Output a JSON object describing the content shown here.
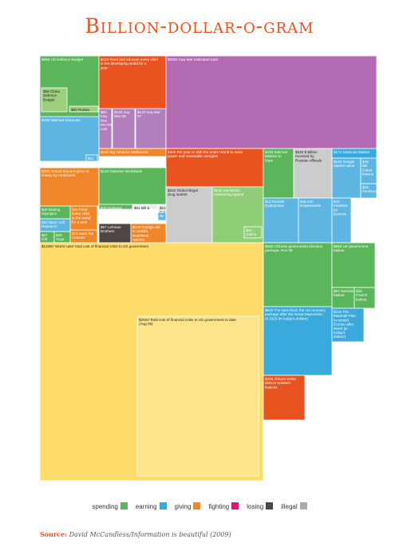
{
  "title": "Billion-dollar-o-gram",
  "legend": [
    {
      "label": "spending",
      "color": "#5bb55a"
    },
    {
      "label": "earning",
      "color": "#3aa9dc"
    },
    {
      "label": "giving",
      "color": "#f0862a"
    },
    {
      "label": "fighting",
      "color": "#e0167a"
    },
    {
      "label": "losing",
      "color": "#4f4643"
    },
    {
      "label": "illegal",
      "color": "#aaaaaa"
    }
  ],
  "source": {
    "label": "Source:",
    "text": "David McCandless/Information is beautiful (2009)"
  },
  "chart_data": {
    "type": "treemap",
    "unit": "$ billion",
    "cells": [
      {
        "value": 685,
        "label": "US Defence Budget",
        "color": "#5bb55a"
      },
      {
        "value": 69,
        "label": "China Defence Budget",
        "color": "#9dd07c"
      },
      {
        "value": 50,
        "label": "Russia",
        "color": "#9dd07c"
      },
      {
        "value": 410,
        "label": "Feed and educate every child in the developing world for a year",
        "color": "#e8531f"
      },
      {
        "value": 60,
        "label": "Iraq War pre-iterated cost",
        "color": "#b27fbd"
      },
      {
        "value": 135,
        "label": "Iraq War 08",
        "color": "#b27fbd"
      },
      {
        "value": 133,
        "label": "Iraq War 07",
        "color": "#b27fbd"
      },
      {
        "value": 3000,
        "label": "Iraq War estimated total",
        "color": "#b26bb2"
      },
      {
        "value": 405,
        "label": "Walmart revenues",
        "color": "#5db6e2"
      },
      {
        "value": 11,
        "label": "Walmart profits",
        "color": "#5db6e2"
      },
      {
        "value": 246,
        "label": "Big Tobacco Settlement",
        "color": "#f0862a"
      },
      {
        "value": 300,
        "label": "Annual amount given to charity by Americans",
        "color": "#f0862a"
      },
      {
        "value": 300,
        "label": "Per year to shift the entire World to Solar power and renewable energies",
        "color": "#e8531f"
      },
      {
        "value": 120,
        "label": "Diabetes Worldwide",
        "color": "#5bb55a"
      },
      {
        "value": 78,
        "label": "Diabetes Worldwide",
        "color": "#5bb55a"
      },
      {
        "value": 51,
        "label": "Bill & Melinda Gates Foundation",
        "color": "#ededed"
      },
      {
        "value": 15,
        "label": "Gates Foundation annual",
        "color": "#ededed"
      },
      {
        "value": 322,
        "label": "Global illegal drug market",
        "color": "#cccccc"
      },
      {
        "value": 190,
        "label": "Worldwide Advertising Spend",
        "color": "#8fce77"
      },
      {
        "value": 30,
        "label": "Online Advertising",
        "color": "#8fce77"
      },
      {
        "value": 171,
        "label": "Nintendo Market value",
        "color": "#3aa9dc"
      },
      {
        "value": 140,
        "label": "Google Market value",
        "color": "#5db6e2"
      },
      {
        "value": 49,
        "label": "Bill Gates fortune",
        "color": "#5db6e2"
      },
      {
        "value": 15,
        "label": "Facebook",
        "color": "#5db6e2"
      },
      {
        "value": 338,
        "label": "Walmart Mission to Mars",
        "color": "#5bb55a"
      },
      {
        "value": 340,
        "label": "$ Billion received by Russian officials",
        "color": "#cccccc"
      },
      {
        "value": 4,
        "label": "OPEC earnings",
        "color": "#3aa9dc"
      },
      {
        "value": 5,
        "label": "OPEC climate change fund",
        "color": "#5db6e2"
      },
      {
        "value": 12,
        "label": "Erectile Dysfunction",
        "color": "#5db6e2"
      },
      {
        "value": 45,
        "label": "Anti Depressants",
        "color": "#5db6e2"
      },
      {
        "value": 42,
        "label": "Freebies for Doctors",
        "color": "#5db6e2"
      },
      {
        "value": 46,
        "label": "Boeing Olympics",
        "color": "#5bb55a"
      },
      {
        "value": 26,
        "label": "Feed every child in the world for a year",
        "color": "#f0862a"
      },
      {
        "value": 20,
        "label": "Stem Cell Research",
        "color": "#5db6e2"
      },
      {
        "value": 27,
        "label": "Gift Cards",
        "color": "#5bb55a"
      },
      {
        "value": 25,
        "label": "Yoga Industry",
        "color": "#5bb55a"
      },
      {
        "value": 13,
        "label": "Save the Amazon",
        "color": "#f0862a"
      },
      {
        "value": 67,
        "label": "Lehman Brothers",
        "color": "#4f4643"
      },
      {
        "value": 105,
        "label": "Foreign aid to world's wealthiest nations",
        "color": "#f0862a"
      },
      {
        "value": 11900,
        "label": "'Worst case' total cost of financial crisis to US government",
        "color": "#fedc6a"
      },
      {
        "value": 2500,
        "label": "Total cost of financial crisis to US government to date (Aug 09)",
        "color": "#fde48b"
      },
      {
        "value": 586,
        "label": "Chinese government stimulus package, Nov 08",
        "color": "#5bb55a"
      },
      {
        "value": 850,
        "label": "UK government bailout",
        "color": "#5bb55a"
      },
      {
        "value": 67,
        "label": "German bailout",
        "color": "#5bb55a"
      },
      {
        "value": 35,
        "label": "French bailout",
        "color": "#5bb55a"
      },
      {
        "value": 500,
        "label": "The New Deal, the US recovery package after the Great Depression of 1929 (in today's dollars)",
        "color": "#3aa9dc"
      },
      {
        "value": 116,
        "label": "The Marshall Plan to rebuild Europe after WWII (in today's dollars)",
        "color": "#3aa9dc"
      },
      {
        "value": 298,
        "label": "Africa's entire debt to Western Nations",
        "color": "#e8531f"
      }
    ]
  }
}
